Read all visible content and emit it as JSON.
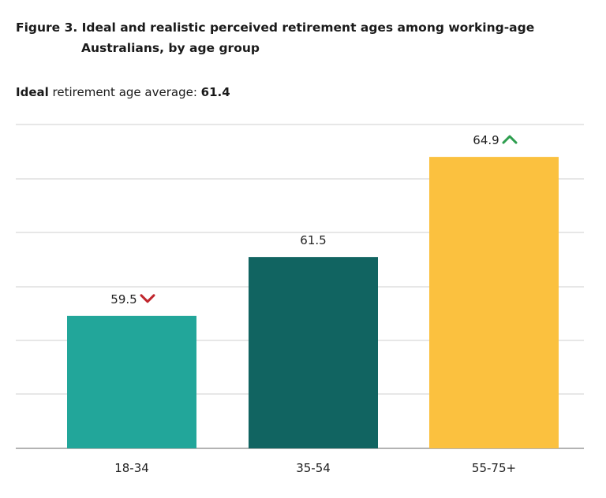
{
  "title_line1": "Figure 3. Ideal and realistic perceived retirement ages among working-age",
  "title_line2": "Australians, by age group",
  "subtitle": {
    "bold": "Ideal",
    "text": " retirement age average: ",
    "value": "61.4"
  },
  "colors": {
    "up": "#2e9e4f",
    "down": "#c0262d",
    "grid": "#cfcfcf"
  },
  "chart_data": {
    "type": "bar",
    "categories": [
      "18-34",
      "35-54",
      "55-75+"
    ],
    "values": [
      59.5,
      61.5,
      64.9
    ],
    "value_labels": [
      "59.5",
      "61.5",
      "64.9"
    ],
    "indicators": [
      "down",
      "none",
      "up"
    ],
    "colors": [
      "#22a69a",
      "#116461",
      "#fbc13f"
    ],
    "ylim": [
      55,
      66
    ]
  }
}
